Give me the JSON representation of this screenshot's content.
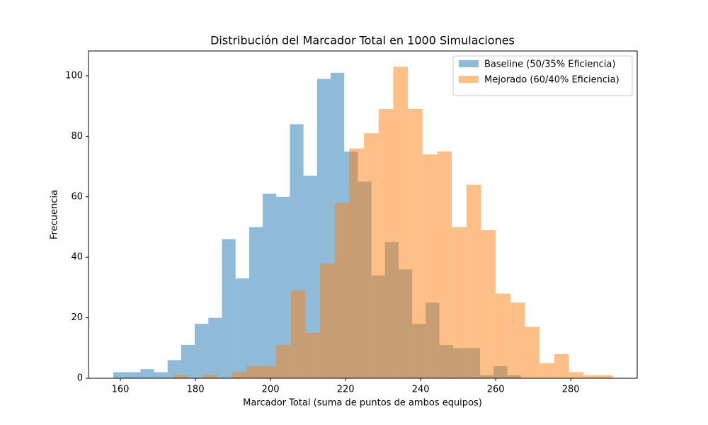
{
  "chart_data": {
    "type": "histogram",
    "title": "Distribución del Marcador Total en 1000 Simulaciones",
    "xlabel": "Marcador Total (suma de puntos de ambos equipos)",
    "ylabel": "Frecuencia",
    "xlim": [
      151.5,
      297.7
    ],
    "ylim": [
      0,
      108.2
    ],
    "xticks": [
      160,
      180,
      200,
      220,
      240,
      260,
      280
    ],
    "yticks": [
      0,
      20,
      40,
      60,
      80,
      100
    ],
    "legend": "upper right",
    "alpha": 0.5,
    "series": [
      {
        "name": "Baseline (50/35% Eficiencia)",
        "color": "#1f77b4",
        "bins": [
          158.1,
          161.72,
          165.34,
          168.96,
          172.58,
          176.2,
          179.82,
          183.44,
          187.06,
          190.68,
          194.3,
          197.92,
          201.54,
          205.16,
          208.78,
          212.4,
          216.02,
          219.64,
          223.26,
          226.88,
          230.5,
          234.12,
          237.74,
          241.36,
          244.98,
          248.6,
          252.22,
          255.84,
          259.46,
          263.08,
          266.7
        ],
        "values": [
          2,
          2,
          3,
          2,
          6,
          11,
          18,
          20,
          46,
          33,
          50,
          61,
          60,
          84,
          67,
          99,
          101,
          75,
          65,
          34,
          45,
          36,
          18,
          25,
          11,
          10,
          10,
          1,
          4,
          1
        ]
      },
      {
        "name": "Mejorado (60/40% Eficiencia)",
        "color": "#ff7f0e",
        "bins": [
          174.2,
          178.1,
          182,
          185.9,
          189.8,
          193.7,
          197.6,
          201.5,
          205.4,
          209.3,
          213.2,
          217.1,
          221,
          224.9,
          228.8,
          232.7,
          236.6,
          240.5,
          244.4,
          248.3,
          252.2,
          256.1,
          260,
          263.9,
          267.8,
          271.7,
          275.6,
          279.5,
          283.4,
          287.3,
          291.2
        ],
        "values": [
          1,
          0,
          1,
          0,
          2,
          4,
          4,
          11,
          29,
          15,
          38,
          58,
          76,
          81,
          89,
          103,
          89,
          74,
          75,
          50,
          64,
          49,
          28,
          25,
          17,
          5,
          8,
          2,
          1,
          1
        ]
      }
    ]
  }
}
